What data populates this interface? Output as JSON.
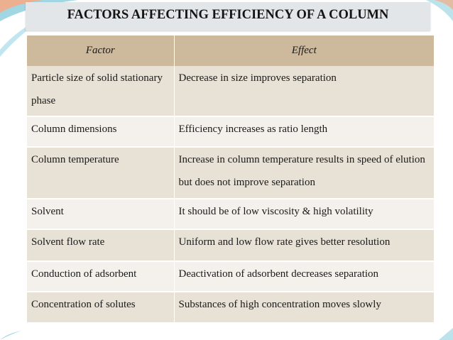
{
  "slide": {
    "title": "FACTORS AFFECTING EFFICIENCY OF A COLUMN"
  },
  "table": {
    "headers": [
      "Factor",
      "Effect"
    ],
    "rows": [
      {
        "factor": "Particle size of solid stationary phase",
        "effect": "Decrease in size improves separation"
      },
      {
        "factor": "Column dimensions",
        "effect": "Efficiency increases as ratio length"
      },
      {
        "factor": "Column temperature",
        "effect": "Increase in column temperature results in speed of elution but does not improve separation"
      },
      {
        "factor": "Solvent",
        "effect": "It should be of low viscosity & high volatility"
      },
      {
        "factor": "Solvent flow rate",
        "effect": "Uniform and low flow rate gives better resolution"
      },
      {
        "factor": "Conduction of adsorbent",
        "effect": "Deactivation of adsorbent decreases separation"
      },
      {
        "factor": "Concentration of solutes",
        "effect": "Substances of high concentration moves slowly"
      }
    ]
  },
  "colors": {
    "header_bg": "#cdb99b",
    "row_odd_bg": "#e8e2d6",
    "row_even_bg": "#f4f1ec",
    "title_bar_bg": "#e3e6e9",
    "accent_teal": "#7fc6d6",
    "accent_orange": "#f2a27a"
  }
}
